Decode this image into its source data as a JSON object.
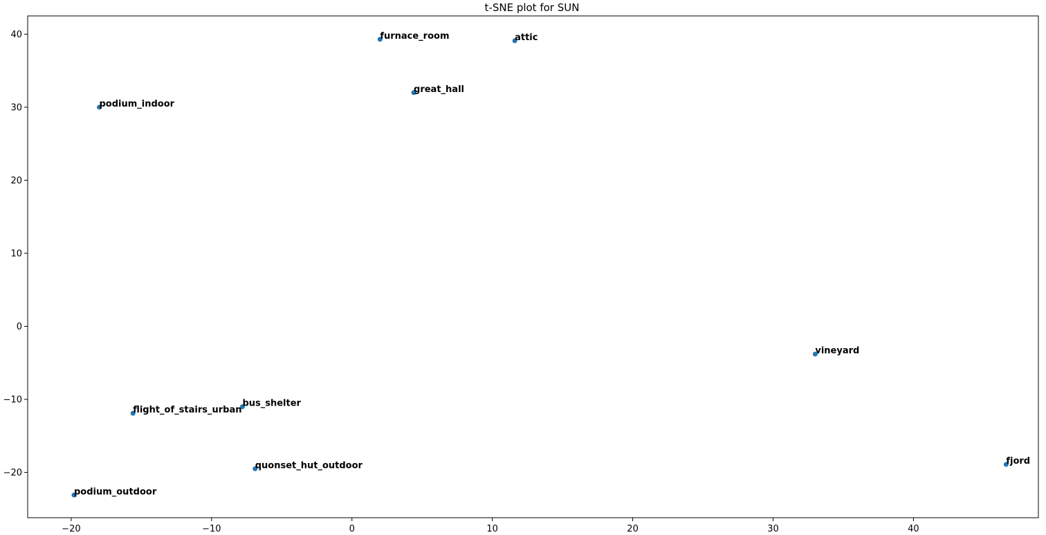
{
  "chart_data": {
    "type": "scatter",
    "title": "t-SNE plot for SUN",
    "xlabel": "",
    "ylabel": "",
    "xlim": [
      -23.1,
      48.9
    ],
    "ylim": [
      -26.2,
      42.5
    ],
    "xticks": [
      -20,
      -10,
      0,
      10,
      20,
      30,
      40
    ],
    "yticks": [
      -20,
      -10,
      0,
      10,
      20,
      30,
      40
    ],
    "grid": false,
    "marker_color": "#1f77b4",
    "points": [
      {
        "label": "furnace_room",
        "x": 2.0,
        "y": 39.3
      },
      {
        "label": "attic",
        "x": 11.6,
        "y": 39.1
      },
      {
        "label": "great_hall",
        "x": 4.4,
        "y": 32.0
      },
      {
        "label": "podium_indoor",
        "x": -18.0,
        "y": 30.0
      },
      {
        "label": "vineyard",
        "x": 33.0,
        "y": -3.8
      },
      {
        "label": "bus_shelter",
        "x": -7.8,
        "y": -11.0
      },
      {
        "label": "flight_of_stairs_urban",
        "x": -15.6,
        "y": -11.9
      },
      {
        "label": "quonset_hut_outdoor",
        "x": -6.9,
        "y": -19.5
      },
      {
        "label": "fjord",
        "x": 46.6,
        "y": -18.9
      },
      {
        "label": "podium_outdoor",
        "x": -19.8,
        "y": -23.1
      }
    ]
  }
}
